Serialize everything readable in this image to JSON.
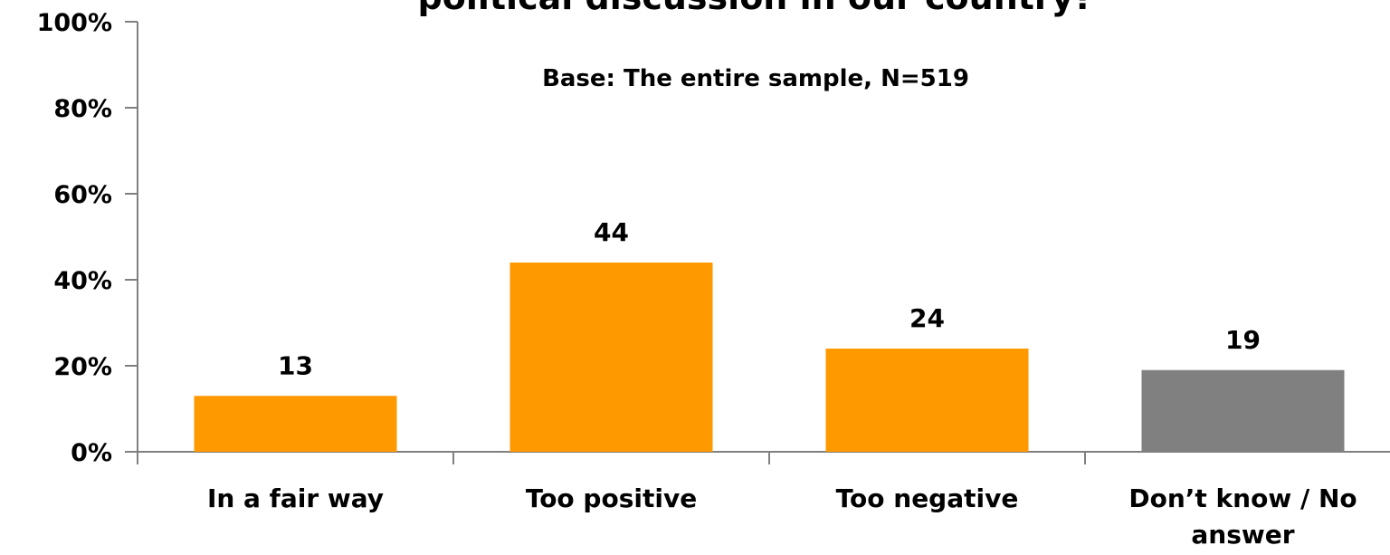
{
  "chart_data": {
    "type": "bar",
    "title": "political discussion in our country?",
    "subtitle": "Base: The entire sample, N=519",
    "categories": [
      "In a fair way",
      "Too positive",
      "Too negative",
      "Don’t know / No answer"
    ],
    "values": [
      13,
      44,
      24,
      19
    ],
    "value_labels": [
      "13",
      "44",
      "24",
      "19"
    ],
    "bar_colors": [
      "#ff9900",
      "#ff9900",
      "#ff9900",
      "#808080"
    ],
    "ylim": [
      0,
      100
    ],
    "yticks": [
      "0%",
      "20%",
      "40%",
      "60%",
      "80%",
      "100%"
    ],
    "ytick_values": [
      0,
      20,
      40,
      60,
      80,
      100
    ],
    "grid": false,
    "legend": "none"
  }
}
